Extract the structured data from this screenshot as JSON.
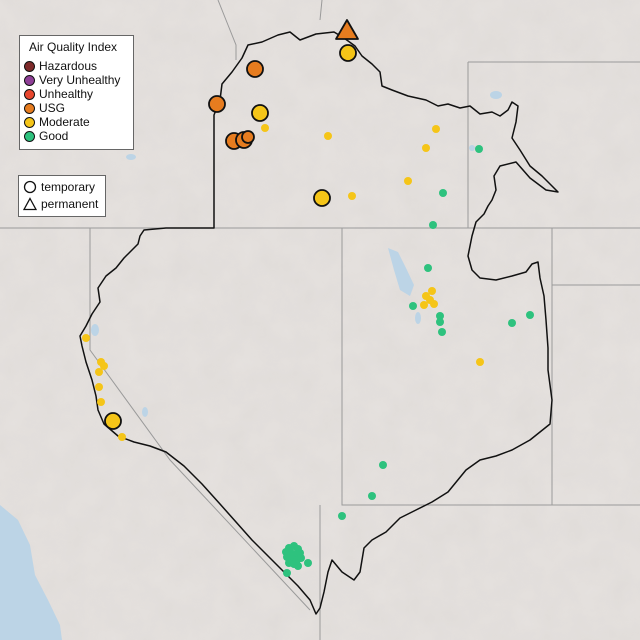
{
  "legend": {
    "title": "Air Quality Index",
    "categories": [
      {
        "label": "Hazardous",
        "color": "#7e2a2a"
      },
      {
        "label": "Very Unhealthy",
        "color": "#8f3f97"
      },
      {
        "label": "Unhealthy",
        "color": "#e8472e"
      },
      {
        "label": "USG",
        "color": "#e67c1f"
      },
      {
        "label": "Moderate",
        "color": "#f5c518"
      },
      {
        "label": "Good",
        "color": "#2ec27e"
      }
    ]
  },
  "type_legend": {
    "items": [
      {
        "label": "temporary",
        "shape": "circle-icon"
      },
      {
        "label": "permanent",
        "shape": "triangle-icon"
      }
    ]
  },
  "colors": {
    "land": "#e6e2df",
    "water": "#bcd4e6",
    "boundary": "#111111",
    "state_line": "#9a9a9a"
  }
}
